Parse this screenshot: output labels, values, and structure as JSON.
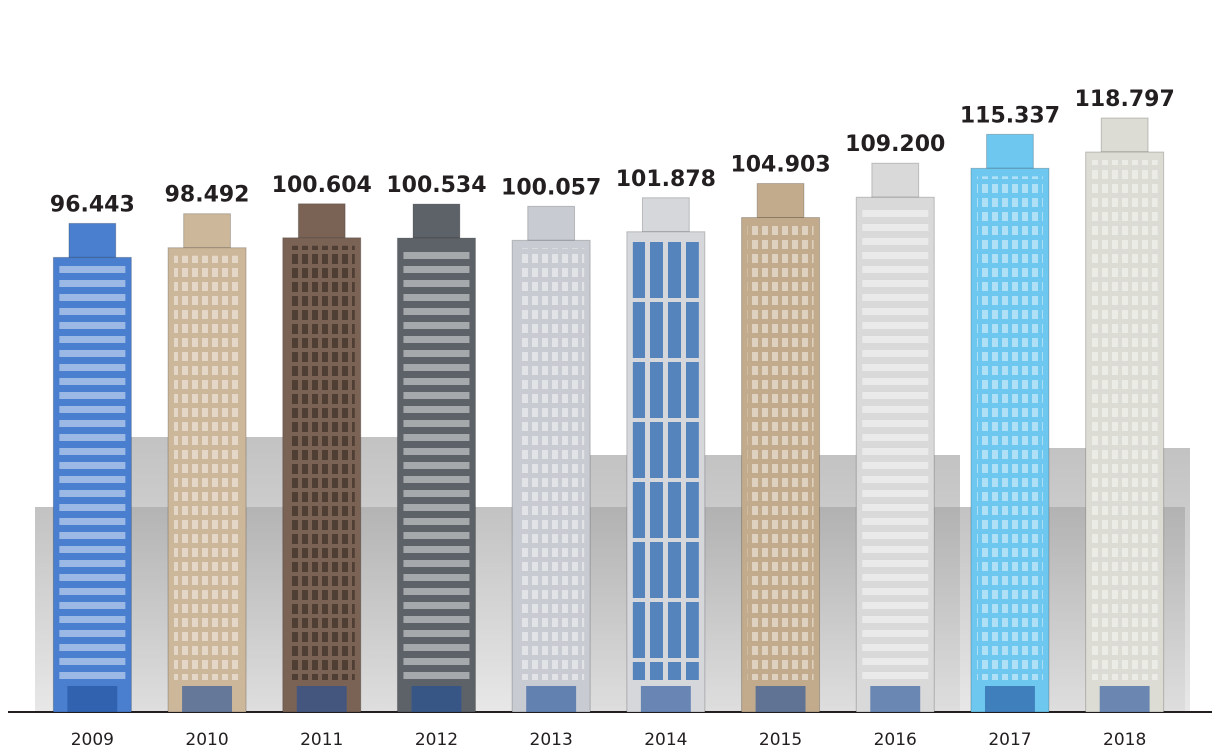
{
  "chart_data": {
    "type": "bar",
    "categories": [
      "2009",
      "2010",
      "2011",
      "2012",
      "2013",
      "2014",
      "2015",
      "2016",
      "2017",
      "2018"
    ],
    "values": [
      96.443,
      98.492,
      100.604,
      100.534,
      100.057,
      101.878,
      104.903,
      109.2,
      115.337,
      118.797
    ],
    "value_labels": [
      "96.443",
      "98.492",
      "100.604",
      "100.534",
      "100.057",
      "101.878",
      "104.903",
      "109.200",
      "115.337",
      "118.797"
    ],
    "colors": [
      "#4a7fd0",
      "#cdb79a",
      "#7a6355",
      "#5d6268",
      "#c8ccd2",
      "#d5d7db",
      "#c2ab8c",
      "#d9d9da",
      "#6dc7ef",
      "#dcdcd4"
    ]
  }
}
